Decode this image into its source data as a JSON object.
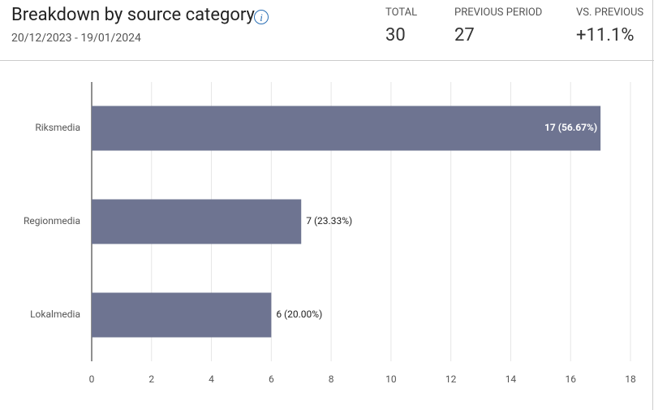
{
  "header": {
    "title": "Breakdown by source category",
    "date_range": "20/12/2023 - 19/01/2024",
    "stats": [
      {
        "label": "TOTAL",
        "value": 30
      },
      {
        "label": "PREVIOUS PERIOD",
        "value": 27
      },
      {
        "label": "VS. PREVIOUS",
        "value": "+11.1%"
      }
    ]
  },
  "chart_data": {
    "type": "bar",
    "orientation": "horizontal",
    "categories": [
      "Riksmedia",
      "Regionmedia",
      "Lokalmedia"
    ],
    "values": [
      17,
      7,
      6
    ],
    "value_labels": [
      "17 (56.67%)",
      "7 (23.33%)",
      "6 (20.00%)"
    ],
    "color": "#6e7491",
    "xlim": [
      0,
      18
    ],
    "xticks": [
      0,
      2,
      4,
      6,
      8,
      10,
      12,
      14,
      16,
      18
    ],
    "grid": true
  }
}
